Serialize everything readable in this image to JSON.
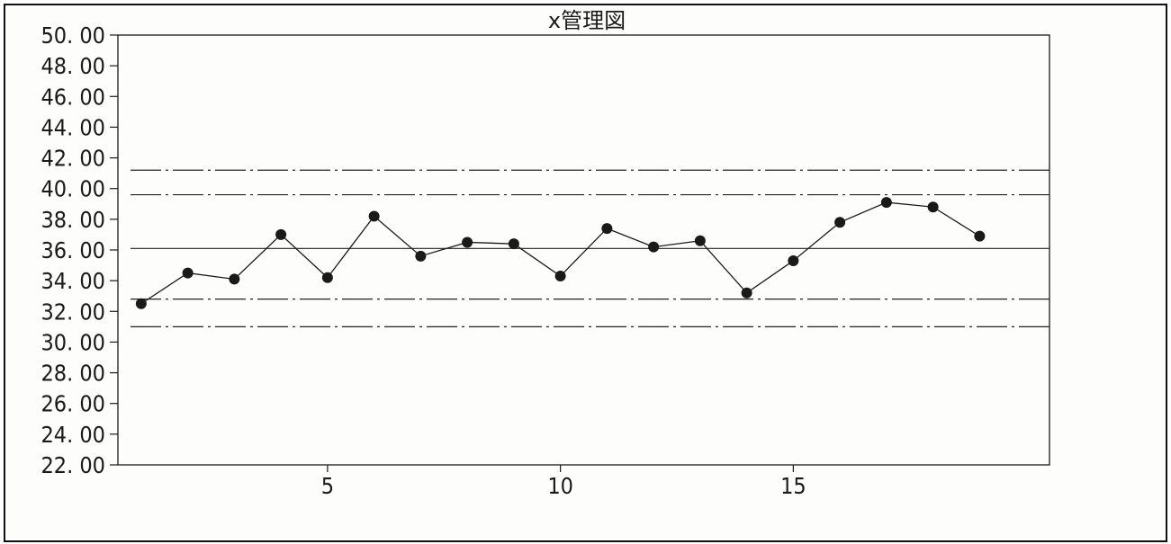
{
  "chart_data": {
    "type": "line",
    "title": "x管理図",
    "xlabel": "",
    "ylabel": "",
    "ylim": [
      22,
      50
    ],
    "xlim": [
      0.5,
      20.5
    ],
    "yticks": [
      "22. 00",
      "24. 00",
      "26. 00",
      "28. 00",
      "30. 00",
      "32. 00",
      "34. 00",
      "36. 00",
      "38. 00",
      "40. 00",
      "42. 00",
      "44. 00",
      "46. 00",
      "48. 00",
      "50. 00"
    ],
    "ytick_values": [
      22,
      24,
      26,
      28,
      30,
      32,
      34,
      36,
      38,
      40,
      42,
      44,
      46,
      48,
      50
    ],
    "xticks": [
      "5",
      "10",
      "15"
    ],
    "xtick_values": [
      5,
      10,
      15
    ],
    "grid": false,
    "series": [
      {
        "x": [
          1,
          2,
          3,
          4,
          5,
          6,
          7,
          8,
          9,
          10,
          11,
          12,
          13,
          14,
          15,
          16,
          17,
          18,
          19
        ],
        "values": [
          32.5,
          34.5,
          34.1,
          37.0,
          34.2,
          38.2,
          35.6,
          36.5,
          36.4,
          34.3,
          37.4,
          36.2,
          36.6,
          33.2,
          35.3,
          37.8,
          39.1,
          38.8,
          36.9
        ],
        "color": "#1a1a1a"
      }
    ],
    "reference_lines": [
      {
        "value": 36.1,
        "style": "solid"
      },
      {
        "value": 39.6,
        "style": "dash-dot"
      },
      {
        "value": 41.2,
        "style": "dash-dot"
      },
      {
        "value": 32.8,
        "style": "dash-dot"
      },
      {
        "value": 31.0,
        "style": "dash-dot"
      }
    ]
  }
}
